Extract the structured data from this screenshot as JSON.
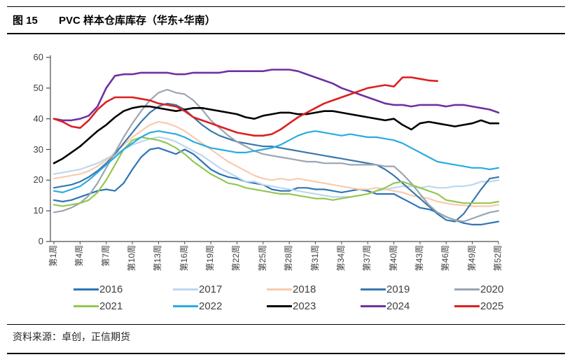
{
  "header": {
    "figure_no": "图 15",
    "title": "PVC 样本仓库库存（华东+华南）"
  },
  "footer": {
    "source": "资料来源：卓创，正信期货"
  },
  "colors": {
    "axis": "#4d4d4d",
    "label_text": "#404040"
  },
  "chart_data": {
    "type": "line",
    "title": "PVC 样本仓库库存（华东+华南）",
    "grid": false,
    "legend_position": "bottom",
    "ylim": [
      0,
      60
    ],
    "yticks": [
      0,
      10,
      20,
      30,
      40,
      50,
      60
    ],
    "weeks": 52,
    "week_label_step": 3,
    "week_labels": [
      "第1周",
      "第4周",
      "第7周",
      "第10周",
      "第13周",
      "第16周",
      "第19周",
      "第22周",
      "第25周",
      "第28周",
      "第31周",
      "第34周",
      "第37周",
      "第40周",
      "第43周",
      "第46周",
      "第49周",
      "第52周"
    ],
    "series": [
      {
        "name": "2016",
        "color": "#2E75B6",
        "values": [
          13.5,
          13,
          13.5,
          14.5,
          15.5,
          16.5,
          17,
          16.5,
          19,
          23.5,
          27.5,
          30,
          30.5,
          29.5,
          28.5,
          30,
          28.5,
          26,
          23.5,
          22,
          21,
          20.5,
          19.5,
          19,
          18.5,
          17,
          16.5,
          16.5,
          17.5,
          17.5,
          17,
          17,
          16.5,
          16,
          16.5,
          17,
          16.5,
          15.5,
          15.5,
          15.5,
          14,
          12.5,
          11,
          10.5,
          9.5,
          8,
          7,
          6,
          5.5,
          5.5,
          6,
          6.5
        ]
      },
      {
        "name": "2017",
        "color": "#BDD7EE",
        "values": [
          22,
          22.5,
          23,
          23.5,
          24.5,
          25.5,
          27,
          28.5,
          30,
          31.5,
          32.5,
          33.5,
          34,
          33.5,
          32.5,
          31,
          29.5,
          28,
          26,
          24,
          22.5,
          21,
          19.5,
          19.5,
          18.5,
          18,
          17.5,
          17,
          16.5,
          16,
          15.5,
          15,
          14.5,
          14.5,
          14.5,
          15,
          15.5,
          16.5,
          17,
          17.5,
          18,
          18,
          17.5,
          18,
          17.5,
          17.5,
          18,
          18,
          18.5,
          19.5,
          19.5,
          20
        ]
      },
      {
        "name": "2018",
        "color": "#F8CBAD",
        "values": [
          20.5,
          21,
          21.5,
          22,
          23,
          24.5,
          26.5,
          29,
          31.5,
          34,
          36,
          38,
          39,
          38.5,
          37.5,
          36,
          34,
          32,
          30,
          28,
          26,
          24.5,
          23,
          21.5,
          20.5,
          20,
          20.5,
          20,
          20.5,
          20,
          19.5,
          19,
          18.5,
          18,
          17.5,
          17,
          17,
          17.5,
          17,
          16.5,
          16,
          15,
          14.5,
          14,
          13,
          12.5,
          12,
          11.8,
          11.5,
          11.5,
          11.5,
          12
        ]
      },
      {
        "name": "2019",
        "color": "#3A77AD",
        "values": [
          17.5,
          18,
          18.5,
          19.5,
          21,
          23,
          25.5,
          28.5,
          32,
          35.5,
          39,
          42,
          44,
          45,
          44.5,
          43,
          40.5,
          38,
          36,
          34.5,
          33.5,
          32.5,
          32,
          31.5,
          31,
          31,
          30.5,
          30,
          29.5,
          29,
          28.5,
          28,
          27.5,
          27,
          26.5,
          26,
          25.5,
          25,
          23.5,
          21.5,
          19,
          16.5,
          14,
          11.5,
          9,
          7,
          6.5,
          9,
          13,
          17,
          20.5,
          21
        ]
      },
      {
        "name": "2020",
        "color": "#9BA5B2",
        "values": [
          9.5,
          10,
          11,
          12.5,
          15,
          19,
          24,
          29,
          34,
          38.5,
          42.5,
          46,
          48.5,
          49.5,
          48.5,
          48,
          46,
          43,
          39.5,
          37,
          34.5,
          32.5,
          31,
          29.5,
          28.5,
          28,
          27.5,
          27,
          26.5,
          26,
          26,
          25.5,
          25.5,
          25.5,
          25,
          25,
          25,
          25,
          24.5,
          24.5,
          22,
          19,
          15.5,
          12,
          9.5,
          8,
          7,
          6.5,
          7.5,
          8.5,
          9.5,
          10
        ]
      },
      {
        "name": "2021",
        "color": "#92C850",
        "values": [
          12,
          11.5,
          12,
          12.5,
          13.5,
          16,
          20,
          25,
          30,
          33,
          34,
          33.5,
          33,
          32,
          30.5,
          28.5,
          26,
          24,
          22,
          20.5,
          19,
          18.5,
          17.5,
          17,
          16.5,
          16,
          15.5,
          15.5,
          15,
          14.5,
          14,
          14,
          13.5,
          14,
          14.5,
          15,
          15.5,
          16.5,
          17.5,
          19,
          19.5,
          18.5,
          17.5,
          16.5,
          15.5,
          13.5,
          13,
          12.5,
          12.5,
          12.5,
          12.5,
          13
        ]
      },
      {
        "name": "2022",
        "color": "#29ABE2",
        "values": [
          16.5,
          16,
          17,
          18,
          20,
          22.5,
          25,
          27.5,
          30,
          32,
          34,
          35.5,
          36,
          35.5,
          35,
          34,
          32.5,
          31.5,
          30.5,
          30,
          29.5,
          29,
          29,
          29.5,
          30,
          30.5,
          31.5,
          33,
          34.5,
          35.5,
          36,
          35.5,
          35,
          34.5,
          35,
          34.5,
          34,
          34,
          33.5,
          33,
          32,
          30.5,
          29,
          27.5,
          26,
          25.5,
          25,
          24.5,
          24,
          24,
          23.5,
          24
        ]
      },
      {
        "name": "2023",
        "color": "#000000",
        "values": [
          25.5,
          27,
          29,
          31,
          33.5,
          36,
          38,
          40.5,
          42.5,
          43.5,
          44,
          44,
          43.5,
          43,
          42.5,
          43,
          43.5,
          43.5,
          43,
          42.5,
          42,
          41.5,
          40.5,
          40,
          41,
          41.5,
          42,
          42,
          41.5,
          41.5,
          42,
          42.5,
          42.5,
          42,
          41.5,
          41,
          40.5,
          40,
          39.5,
          40,
          38,
          36.5,
          38.5,
          39,
          38.5,
          38,
          37.5,
          38,
          38.5,
          39.5,
          38.5,
          38.5
        ]
      },
      {
        "name": "2024",
        "color": "#7030A0",
        "values": [
          40,
          39.5,
          39.5,
          40,
          41,
          44,
          50,
          54,
          54.5,
          54.5,
          55,
          55,
          55,
          55,
          54.5,
          54.5,
          55,
          55,
          55,
          55,
          55.5,
          55.5,
          55.5,
          55.5,
          55.5,
          56,
          56,
          56,
          55.5,
          54.5,
          53.5,
          52.5,
          51.5,
          50,
          49,
          48,
          47,
          46,
          45,
          44.5,
          44.5,
          44,
          44.5,
          44.5,
          44.5,
          44,
          44.5,
          44.5,
          44,
          43.5,
          43,
          42
        ]
      },
      {
        "name": "2025",
        "color": "#DD1F1F",
        "values": [
          40,
          39,
          37.5,
          37,
          39.5,
          43,
          45.5,
          47,
          47,
          47,
          46.5,
          46,
          45,
          44.5,
          44,
          42.5,
          40.5,
          39.5,
          38.5,
          37.5,
          36.5,
          35.5,
          35,
          34.5,
          34.5,
          35,
          36.5,
          38.5,
          40.5,
          42,
          43.5,
          45,
          46,
          47,
          48,
          49,
          50,
          50.5,
          51,
          50.5,
          53.5,
          53.5,
          53,
          52.5,
          52.3,
          null,
          null,
          null,
          null,
          null,
          null,
          null
        ]
      }
    ]
  }
}
